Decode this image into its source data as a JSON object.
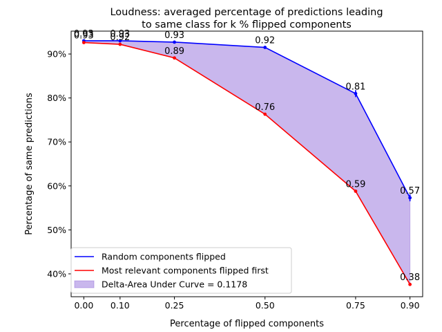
{
  "chart_data": {
    "type": "line",
    "title": [
      "Loudness: averaged percentage of predictions leading",
      "to same class for k % flipped components"
    ],
    "xlabel": "Percentage of flipped components",
    "ylabel": "Percentage of same predictions",
    "x": [
      0.0,
      0.1,
      0.25,
      0.5,
      0.75,
      0.9
    ],
    "x_tick_labels": [
      "0.00",
      "0.10",
      "0.25",
      "0.50",
      "0.75",
      "0.90"
    ],
    "xlim": [
      -0.035,
      0.935
    ],
    "ylim": [
      0.348,
      0.952
    ],
    "y_ticks": [
      0.4,
      0.5,
      0.6,
      0.7,
      0.8,
      0.9
    ],
    "y_tick_labels": [
      "40%",
      "50%",
      "60%",
      "70%",
      "80%",
      "90%"
    ],
    "grid": false,
    "legend_position": "lower-left",
    "series": [
      {
        "name": "Random components flipped",
        "color": "#0000ff",
        "values": [
          0.93,
          0.93,
          0.927,
          0.915,
          0.81,
          0.573
        ],
        "data_labels": [
          "0.93",
          "0.93",
          "0.93",
          "0.92",
          "0.81",
          "0.57"
        ]
      },
      {
        "name": "Most relevant components flipped first",
        "color": "#ff0000",
        "values": [
          0.926,
          0.922,
          0.891,
          0.763,
          0.588,
          0.376
        ],
        "data_labels": [
          "0.93",
          "0.92",
          "0.89",
          "0.76",
          "0.59",
          "0.38"
        ]
      }
    ],
    "fill_between": {
      "name": "Delta-Area Under Curve = 0.1178",
      "color": "#9370db"
    }
  }
}
